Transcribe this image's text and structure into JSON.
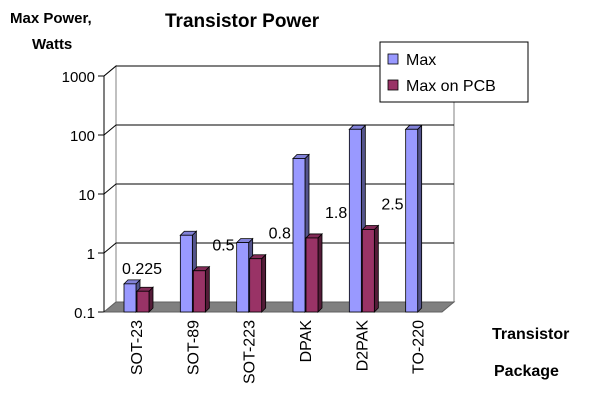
{
  "chart_data": {
    "type": "bar",
    "title": "Transistor Power",
    "ylabel_line1": "Max Power,",
    "ylabel_line2": "Watts",
    "xlabel_line1": "Transistor",
    "xlabel_line2": "Package",
    "y_scale": "log",
    "ylim": [
      0.1,
      1000
    ],
    "y_ticks": [
      "0.1",
      "1",
      "10",
      "100",
      "1000"
    ],
    "y_tick_values": [
      0.1,
      1,
      10,
      100,
      1000
    ],
    "categories": [
      "SOT-23",
      "SOT-89",
      "SOT-223",
      "DPAK",
      "D2PAK",
      "TO-220"
    ],
    "series": [
      {
        "name": "Max",
        "color": "#9999ff",
        "values": [
          0.3,
          2,
          1.5,
          40,
          125,
          125
        ]
      },
      {
        "name": "Max on PCB",
        "color": "#993366",
        "values": [
          0.225,
          0.5,
          0.8,
          1.8,
          2.5,
          null
        ]
      }
    ],
    "data_labels": [
      "0.225",
      "0.5",
      "0.8",
      "1.8",
      "2.5",
      ""
    ],
    "legend_position": "top-right",
    "grid": true
  }
}
